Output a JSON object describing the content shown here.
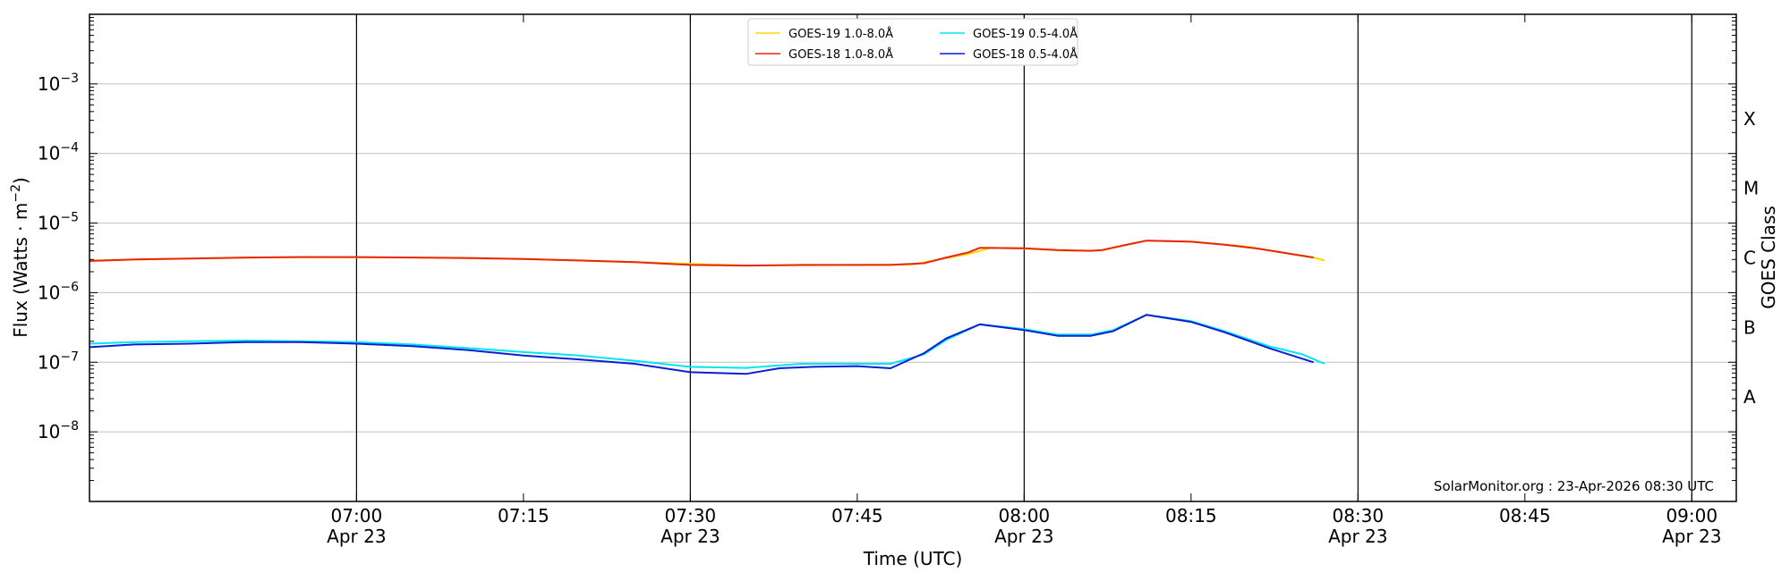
{
  "chart_data": {
    "type": "line",
    "xlabel": "Time (UTC)",
    "ylabel_text": "Flux (Watts · m",
    "ylabel_unit_exp": "−2",
    "ylabel_close": ")",
    "right_axis_label": "GOES Class",
    "y_scale": "log",
    "ylim": [
      1e-09,
      0.01
    ],
    "xlim": [
      "06:36",
      "09:04"
    ],
    "y_ticks": [
      {
        "value": 1e-08,
        "base": "10",
        "exp": "−8"
      },
      {
        "value": 1e-07,
        "base": "10",
        "exp": "−7"
      },
      {
        "value": 1e-06,
        "base": "10",
        "exp": "−6"
      },
      {
        "value": 1e-05,
        "base": "10",
        "exp": "−5"
      },
      {
        "value": 0.0001,
        "base": "10",
        "exp": "−4"
      },
      {
        "value": 0.001,
        "base": "10",
        "exp": "−3"
      }
    ],
    "x_ticks": [
      {
        "time": "07:00",
        "label": "07:00",
        "date": "Apr 23",
        "major": true
      },
      {
        "time": "07:15",
        "label": "07:15",
        "date": "",
        "major": false
      },
      {
        "time": "07:30",
        "label": "07:30",
        "date": "Apr 23",
        "major": true
      },
      {
        "time": "07:45",
        "label": "07:45",
        "date": "",
        "major": false
      },
      {
        "time": "08:00",
        "label": "08:00",
        "date": "Apr 23",
        "major": true
      },
      {
        "time": "08:15",
        "label": "08:15",
        "date": "",
        "major": false
      },
      {
        "time": "08:30",
        "label": "08:30",
        "date": "Apr 23",
        "major": true
      },
      {
        "time": "08:45",
        "label": "08:45",
        "date": "",
        "major": false
      },
      {
        "time": "09:00",
        "label": "09:00",
        "date": "Apr 23",
        "major": true
      }
    ],
    "goes_classes": [
      {
        "label": "A",
        "value": 3.16e-08
      },
      {
        "label": "B",
        "value": 3.16e-07
      },
      {
        "label": "C",
        "value": 3.16e-06
      },
      {
        "label": "M",
        "value": 3.16e-05
      },
      {
        "label": "X",
        "value": 0.000316
      }
    ],
    "grid": {
      "horizontal": true,
      "vertical_at_major_ticks": true
    },
    "legend_placement": "top-center",
    "series": [
      {
        "name": "GOES-19 1.0-8.0Å",
        "color": "#ffd700",
        "points": [
          [
            "06:36",
            2.9e-06
          ],
          [
            "06:45",
            3.1e-06
          ],
          [
            "06:55",
            3.25e-06
          ],
          [
            "07:05",
            3.2e-06
          ],
          [
            "07:15",
            3.05e-06
          ],
          [
            "07:25",
            2.75e-06
          ],
          [
            "07:35",
            2.45e-06
          ],
          [
            "07:45",
            2.5e-06
          ],
          [
            "07:50",
            2.55e-06
          ],
          [
            "07:55",
            3.6e-06
          ],
          [
            "07:57",
            4.4e-06
          ],
          [
            "08:00",
            4.3e-06
          ],
          [
            "08:04",
            4e-06
          ],
          [
            "08:07",
            4.05e-06
          ],
          [
            "08:09",
            4.8e-06
          ],
          [
            "08:11",
            5.6e-06
          ],
          [
            "08:15",
            5.4e-06
          ],
          [
            "08:20",
            4.6e-06
          ],
          [
            "08:24",
            3.6e-06
          ],
          [
            "08:26",
            3.2e-06
          ],
          [
            "08:27",
            2.9e-06
          ]
        ]
      },
      {
        "name": "GOES-18 1.0-8.0Å",
        "color": "#e8260c",
        "points": [
          [
            "06:36",
            2.85e-06
          ],
          [
            "06:40",
            3e-06
          ],
          [
            "06:45",
            3.1e-06
          ],
          [
            "06:50",
            3.2e-06
          ],
          [
            "06:55",
            3.25e-06
          ],
          [
            "07:00",
            3.25e-06
          ],
          [
            "07:05",
            3.2e-06
          ],
          [
            "07:10",
            3.15e-06
          ],
          [
            "07:15",
            3.05e-06
          ],
          [
            "07:20",
            2.9e-06
          ],
          [
            "07:25",
            2.75e-06
          ],
          [
            "07:30",
            2.5e-06
          ],
          [
            "07:35",
            2.45e-06
          ],
          [
            "07:40",
            2.5e-06
          ],
          [
            "07:45",
            2.5e-06
          ],
          [
            "07:48",
            2.5e-06
          ],
          [
            "07:51",
            2.65e-06
          ],
          [
            "07:53",
            3.2e-06
          ],
          [
            "07:55",
            3.8e-06
          ],
          [
            "07:56",
            4.4e-06
          ],
          [
            "08:00",
            4.35e-06
          ],
          [
            "08:03",
            4.1e-06
          ],
          [
            "08:06",
            4e-06
          ],
          [
            "08:07",
            4.1e-06
          ],
          [
            "08:09",
            4.8e-06
          ],
          [
            "08:11",
            5.6e-06
          ],
          [
            "08:13",
            5.5e-06
          ],
          [
            "08:15",
            5.4e-06
          ],
          [
            "08:18",
            4.9e-06
          ],
          [
            "08:21",
            4.3e-06
          ],
          [
            "08:24",
            3.6e-06
          ],
          [
            "08:26",
            3.2e-06
          ]
        ]
      },
      {
        "name": "GOES-19 0.5-4.0Å",
        "color": "#00e5ee",
        "points": [
          [
            "06:36",
            1.85e-07
          ],
          [
            "06:40",
            1.95e-07
          ],
          [
            "06:45",
            2e-07
          ],
          [
            "06:50",
            2.05e-07
          ],
          [
            "06:55",
            2e-07
          ],
          [
            "07:00",
            1.95e-07
          ],
          [
            "07:05",
            1.8e-07
          ],
          [
            "07:10",
            1.6e-07
          ],
          [
            "07:15",
            1.4e-07
          ],
          [
            "07:20",
            1.25e-07
          ],
          [
            "07:25",
            1.05e-07
          ],
          [
            "07:30",
            8.6e-08
          ],
          [
            "07:35",
            8.3e-08
          ],
          [
            "07:40",
            9.5e-08
          ],
          [
            "07:45",
            9.5e-08
          ],
          [
            "07:48",
            9.5e-08
          ],
          [
            "07:51",
            1.3e-07
          ],
          [
            "07:53",
            2.1e-07
          ],
          [
            "07:56",
            3.5e-07
          ],
          [
            "08:00",
            3e-07
          ],
          [
            "08:03",
            2.5e-07
          ],
          [
            "08:06",
            2.5e-07
          ],
          [
            "08:08",
            2.9e-07
          ],
          [
            "08:11",
            4.8e-07
          ],
          [
            "08:15",
            3.9e-07
          ],
          [
            "08:18",
            2.8e-07
          ],
          [
            "08:22",
            1.7e-07
          ],
          [
            "08:25",
            1.3e-07
          ],
          [
            "08:27",
            9.5e-08
          ]
        ]
      },
      {
        "name": "GOES-18 0.5-4.0Å",
        "color": "#0a1fd4",
        "points": [
          [
            "06:36",
            1.65e-07
          ],
          [
            "06:40",
            1.8e-07
          ],
          [
            "06:45",
            1.85e-07
          ],
          [
            "06:50",
            1.95e-07
          ],
          [
            "06:55",
            1.95e-07
          ],
          [
            "07:00",
            1.85e-07
          ],
          [
            "07:05",
            1.7e-07
          ],
          [
            "07:10",
            1.5e-07
          ],
          [
            "07:15",
            1.25e-07
          ],
          [
            "07:20",
            1.1e-07
          ],
          [
            "07:25",
            9.5e-08
          ],
          [
            "07:30",
            7.2e-08
          ],
          [
            "07:35",
            6.8e-08
          ],
          [
            "07:38",
            8.2e-08
          ],
          [
            "07:41",
            8.6e-08
          ],
          [
            "07:45",
            8.8e-08
          ],
          [
            "07:48",
            8.2e-08
          ],
          [
            "07:51",
            1.35e-07
          ],
          [
            "07:53",
            2.2e-07
          ],
          [
            "07:56",
            3.5e-07
          ],
          [
            "08:00",
            2.9e-07
          ],
          [
            "08:03",
            2.4e-07
          ],
          [
            "08:06",
            2.4e-07
          ],
          [
            "08:08",
            2.8e-07
          ],
          [
            "08:11",
            4.8e-07
          ],
          [
            "08:15",
            3.8e-07
          ],
          [
            "08:18",
            2.7e-07
          ],
          [
            "08:22",
            1.6e-07
          ],
          [
            "08:26",
            1e-07
          ]
        ]
      }
    ],
    "credit": "SolarMonitor.org : 23-Apr-2026 08:30 UTC"
  }
}
